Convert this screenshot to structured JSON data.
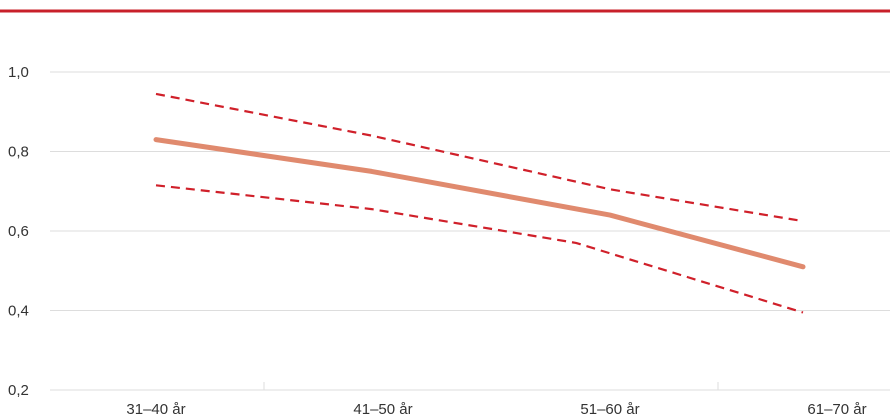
{
  "chart_data": {
    "type": "line",
    "title": "",
    "xlabel": "",
    "ylabel": "",
    "categories": [
      "31–40 år",
      "41–50 år",
      "51–60 år",
      "61–70 år"
    ],
    "y_ticks": [
      "0,2",
      "0,4",
      "0,6",
      "0,8",
      "1,0"
    ],
    "y_tick_values": [
      0.2,
      0.4,
      0.6,
      0.8,
      1.0
    ],
    "ylim": [
      0.2,
      1.0
    ],
    "grid": true,
    "legend": "none",
    "series": [
      {
        "role": "estimate",
        "style": "solid",
        "color": "#e08a6e",
        "x": [
          0,
          0.95,
          2.0,
          2.85
        ],
        "values": [
          0.83,
          0.75,
          0.64,
          0.51
        ]
      },
      {
        "role": "upper-bound",
        "style": "dashed",
        "color": "#d0202a",
        "x": [
          0,
          0.95,
          2.0,
          2.85
        ],
        "values": [
          0.945,
          0.84,
          0.705,
          0.625
        ]
      },
      {
        "role": "lower-bound",
        "style": "dashed",
        "color": "#d0202a",
        "x": [
          0,
          0.95,
          1.85,
          2.85
        ],
        "values": [
          0.715,
          0.655,
          0.57,
          0.395
        ]
      }
    ],
    "colors": {
      "top_rule": "#c8202a",
      "grid": "#dddddd",
      "text": "#333333"
    }
  }
}
